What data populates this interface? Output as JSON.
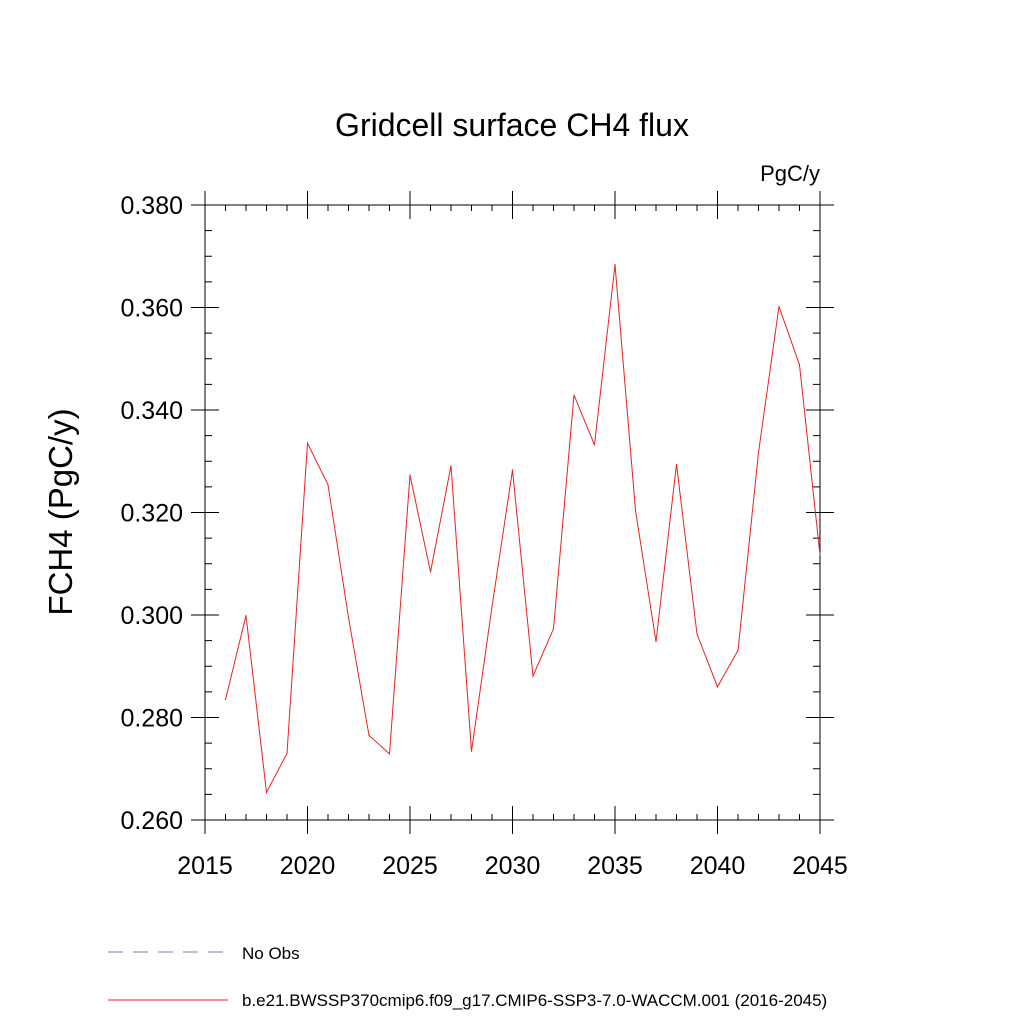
{
  "chart_data": {
    "type": "line",
    "title": "Gridcell surface CH4 flux",
    "units_label": "PgC/y",
    "ylabel": "FCH4  (PgC/y)",
    "xlabel": "",
    "xlim": [
      2015,
      2045
    ],
    "ylim": [
      0.26,
      0.38
    ],
    "x_ticks": [
      2015,
      2020,
      2025,
      2030,
      2035,
      2040,
      2045
    ],
    "x_tick_labels": [
      "2015",
      "2020",
      "2025",
      "2030",
      "2035",
      "2040",
      "2045"
    ],
    "y_ticks": [
      0.26,
      0.28,
      0.3,
      0.32,
      0.34,
      0.36,
      0.38
    ],
    "y_tick_labels": [
      "0.260",
      "0.280",
      "0.300",
      "0.320",
      "0.340",
      "0.360",
      "0.380"
    ],
    "grid": false,
    "legend_position": "bottom-left",
    "legend": [
      {
        "label": "No Obs",
        "color": "#7b7bb0",
        "style": "dashed"
      },
      {
        "label": "b.e21.BWSSP370cmip6.f09_g17.CMIP6-SSP3-7.0-WACCM.001 (2016-2045)",
        "color": "#e8221f",
        "style": "solid"
      }
    ],
    "series": [
      {
        "name": "b.e21.BWSSP370cmip6.f09_g17.CMIP6-SSP3-7.0-WACCM.001 (2016-2045)",
        "color": "#e8221f",
        "x": [
          2016,
          2017,
          2018,
          2019,
          2020,
          2021,
          2022,
          2023,
          2024,
          2025,
          2026,
          2027,
          2028,
          2029,
          2030,
          2031,
          2032,
          2033,
          2034,
          2035,
          2036,
          2037,
          2038,
          2039,
          2040,
          2041,
          2042,
          2043,
          2044,
          2045
        ],
        "values": [
          0.2835,
          0.2999,
          0.2654,
          0.273,
          0.3335,
          0.3254,
          0.2995,
          0.2765,
          0.2729,
          0.3273,
          0.3084,
          0.3291,
          0.2734,
          0.3016,
          0.3283,
          0.2881,
          0.2973,
          0.3429,
          0.3332,
          0.3684,
          0.3204,
          0.2948,
          0.3294,
          0.2963,
          0.286,
          0.2931,
          0.3317,
          0.3602,
          0.3488,
          0.3117
        ]
      }
    ]
  }
}
